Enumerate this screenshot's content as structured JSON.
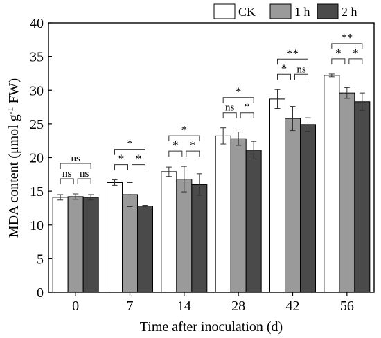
{
  "chart_data": {
    "type": "bar",
    "xlabel": "Time after inoculation (d)",
    "ylabel_main": "MDA content (μmol g",
    "ylabel_sup": "-1",
    "ylabel_end": " FW)",
    "ylim": [
      0,
      40
    ],
    "yticks": [
      0,
      5,
      10,
      15,
      20,
      25,
      30,
      35,
      40
    ],
    "categories": [
      "0",
      "7",
      "14",
      "28",
      "42",
      "56"
    ],
    "legend": {
      "placement": "top-right",
      "entries": [
        "CK",
        "1 h",
        "2 h"
      ]
    },
    "series": [
      {
        "name": "CK",
        "color": "#ffffff",
        "values": [
          14.1,
          16.3,
          17.9,
          23.2,
          28.7,
          32.2
        ],
        "errors": [
          0.4,
          0.4,
          0.7,
          1.2,
          1.4,
          0.2
        ]
      },
      {
        "name": "1 h",
        "color": "#9a9a9a",
        "values": [
          14.2,
          14.5,
          16.8,
          22.8,
          25.8,
          29.6
        ],
        "errors": [
          0.4,
          1.8,
          1.9,
          1.0,
          1.8,
          0.8
        ]
      },
      {
        "name": "2 h",
        "color": "#4a4a4a",
        "values": [
          14.1,
          12.8,
          16.0,
          21.1,
          24.9,
          28.3
        ],
        "errors": [
          0.4,
          0.1,
          1.6,
          1.3,
          1.0,
          1.3
        ]
      }
    ],
    "significance": [
      [
        {
          "a": 0,
          "b": 2,
          "label": "ns"
        },
        {
          "a": 0,
          "b": 1,
          "label": "ns"
        },
        {
          "a": 1,
          "b": 2,
          "label": "ns"
        }
      ],
      [
        {
          "a": 0,
          "b": 2,
          "label": "*"
        },
        {
          "a": 0,
          "b": 1,
          "label": "*"
        },
        {
          "a": 1,
          "b": 2,
          "label": "*"
        }
      ],
      [
        {
          "a": 0,
          "b": 2,
          "label": "*"
        },
        {
          "a": 0,
          "b": 1,
          "label": "*"
        },
        {
          "a": 1,
          "b": 2,
          "label": "*"
        }
      ],
      [
        {
          "a": 0,
          "b": 2,
          "label": "*"
        },
        {
          "a": 0,
          "b": 1,
          "label": "ns"
        },
        {
          "a": 1,
          "b": 2,
          "label": "*"
        }
      ],
      [
        {
          "a": 0,
          "b": 2,
          "label": "**"
        },
        {
          "a": 0,
          "b": 1,
          "label": "*"
        },
        {
          "a": 1,
          "b": 2,
          "label": "ns"
        }
      ],
      [
        {
          "a": 0,
          "b": 2,
          "label": "**"
        },
        {
          "a": 0,
          "b": 1,
          "label": "*"
        },
        {
          "a": 1,
          "b": 2,
          "label": "*"
        }
      ]
    ]
  }
}
